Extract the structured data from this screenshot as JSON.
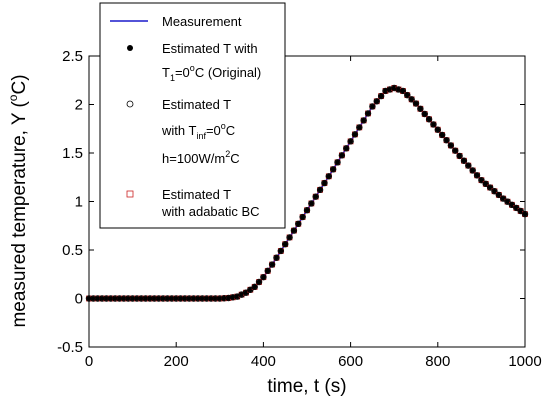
{
  "chart_data": {
    "type": "line",
    "xlim": [
      0,
      1000
    ],
    "ylim": [
      -0.5,
      2.5
    ],
    "xticks": [
      "0",
      "200",
      "400",
      "600",
      "800",
      "1000"
    ],
    "yticks": [
      "-0.5",
      "0",
      "0.5",
      "1",
      "1.5",
      "2",
      "2.5"
    ],
    "xlabel": "time, t (s)",
    "ylabel_main": "measured temperature, Y (",
    "ylabel_deg": "o",
    "ylabel_unit": "C)",
    "legend_position": "top-left",
    "grid": false,
    "series": [
      {
        "name": "Measurement",
        "style": "line",
        "color": "#1a1acc"
      },
      {
        "name": "Estimated T with T1=0°C (Original)",
        "style": "filled-circle",
        "color": "#000000"
      },
      {
        "name": "Estimated T with Tinf=0°C h=100W/m2C",
        "style": "open-circle",
        "color": "#000000"
      },
      {
        "name": "Estimated T with adabatic BC",
        "style": "open-square",
        "color": "#cc2222"
      }
    ],
    "key_points": {
      "x": [
        0,
        300,
        320,
        340,
        360,
        380,
        400,
        420,
        450,
        500,
        550,
        600,
        650,
        680,
        700,
        720,
        750,
        800,
        850,
        900,
        950,
        1000
      ],
      "y": [
        0,
        0,
        0.005,
        0.02,
        0.06,
        0.12,
        0.22,
        0.35,
        0.56,
        0.91,
        1.26,
        1.62,
        1.98,
        2.14,
        2.17,
        2.14,
        2.01,
        1.74,
        1.47,
        1.22,
        1.03,
        0.87
      ]
    },
    "marker_step": 10
  },
  "legend": {
    "measurement": "Measurement",
    "est1_line1": "Estimated T with",
    "est1_T": "T",
    "est1_sub": "1",
    "est1_eq": "=0",
    "est1_deg": "o",
    "est1_rest": "C (Original)",
    "est2_line1": "Estimated T",
    "est2_with": "with  T",
    "est2_sub": "inf",
    "est2_eq": "=0",
    "est2_deg": "o",
    "est2_C": "C",
    "est2_h": "h=100W/m",
    "est2_sup": "2",
    "est2_hC": "C",
    "est3_line1": "Estimated T",
    "est3_line2": "with adabatic BC"
  }
}
